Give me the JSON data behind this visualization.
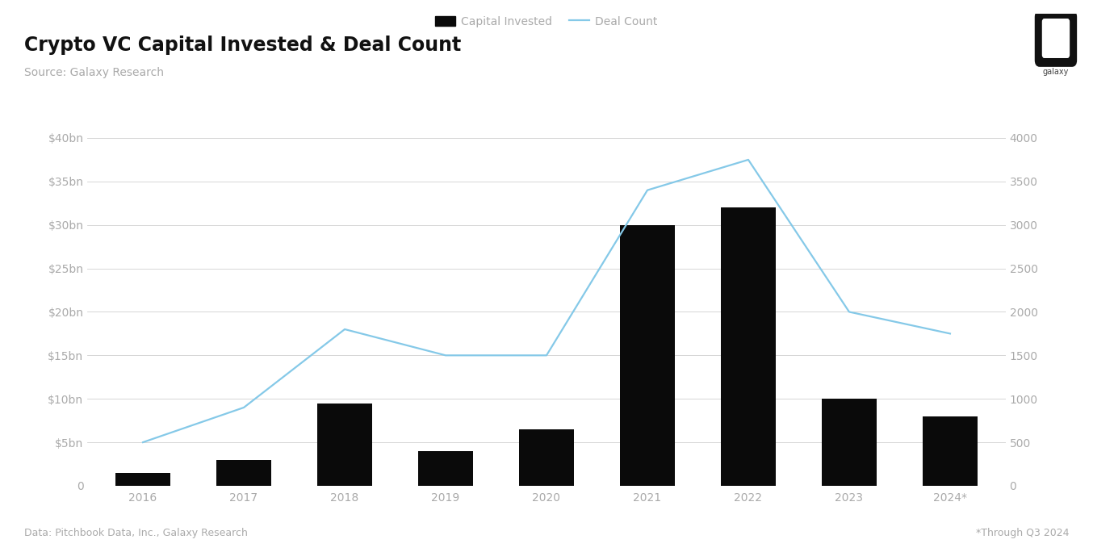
{
  "title": "Crypto VC Capital Invested & Deal Count",
  "subtitle": "Source: Galaxy Research",
  "footnote_left": "Data: Pitchbook Data, Inc., Galaxy Research",
  "footnote_right": "*Through Q3 2024",
  "categories": [
    "2016",
    "2017",
    "2018",
    "2019",
    "2020",
    "2021",
    "2022",
    "2023",
    "2024*"
  ],
  "capital_invested_bn": [
    1.5,
    3.0,
    9.5,
    4.0,
    6.5,
    30.0,
    32.0,
    10.0,
    8.0
  ],
  "deal_count": [
    500,
    900,
    1800,
    1500,
    1500,
    3400,
    3750,
    2000,
    1750
  ],
  "bar_color": "#0a0a0a",
  "line_color": "#85c9e8",
  "background_color": "#ffffff",
  "grid_color": "#d0d0d0",
  "tick_color": "#aaaaaa",
  "title_color": "#111111",
  "subtitle_color": "#aaaaaa",
  "footnote_color": "#aaaaaa",
  "left_ylim": [
    0,
    40
  ],
  "left_yticks": [
    0,
    5,
    10,
    15,
    20,
    25,
    30,
    35,
    40
  ],
  "right_ylim": [
    0,
    4000
  ],
  "right_yticks": [
    0,
    500,
    1000,
    1500,
    2000,
    2500,
    3000,
    3500,
    4000
  ],
  "title_fontsize": 17,
  "subtitle_fontsize": 10,
  "tick_fontsize": 10,
  "footnote_fontsize": 9,
  "legend_fontsize": 10,
  "bar_width": 0.55,
  "line_width": 1.6
}
